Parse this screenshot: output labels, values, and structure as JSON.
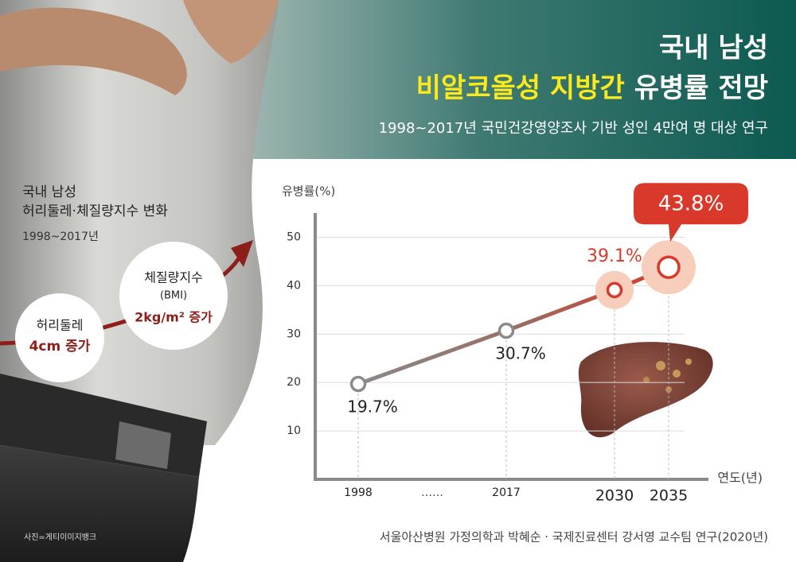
{
  "header": {
    "line1": "국내 남성",
    "highlight": "비알코올성 지방간",
    "line2": "유병률 전망",
    "subtitle": "1998~2017년 국민건강영양조사 기반 성인 4만여 명 대상 연구"
  },
  "left_panel": {
    "title1": "국내 남성",
    "title2": "허리둘레·체질량지수 변화",
    "period": "1998~2017년",
    "waist_label": "허리둘레",
    "waist_change": "4cm 증가",
    "bmi_label": "체질량지수",
    "bmi_abbr": "(BMI)",
    "bmi_change": "2kg/m² 증가"
  },
  "chart_data": {
    "type": "line",
    "y_label": "유병률(%)",
    "x_label": "연도(년)",
    "x_break_label": "……",
    "categories": [
      "1998",
      "2017",
      "2030",
      "2035"
    ],
    "series": [
      {
        "name": "유병률",
        "color": "#d8392b",
        "values": [
          19.7,
          30.7,
          39.1,
          43.8
        ],
        "value_labels": [
          "19.7%",
          "30.7%",
          "39.1%",
          "43.8%"
        ]
      }
    ],
    "ylim": [
      0,
      55
    ],
    "yticks": [
      10,
      20,
      30,
      40,
      50
    ],
    "grid": true
  },
  "source": "서울아산병원 가정의학과 박혜순 · 국제진료센터 강서영 교수팀 연구(2020년)",
  "photo_credit": "사진=게티이미지뱅크"
}
